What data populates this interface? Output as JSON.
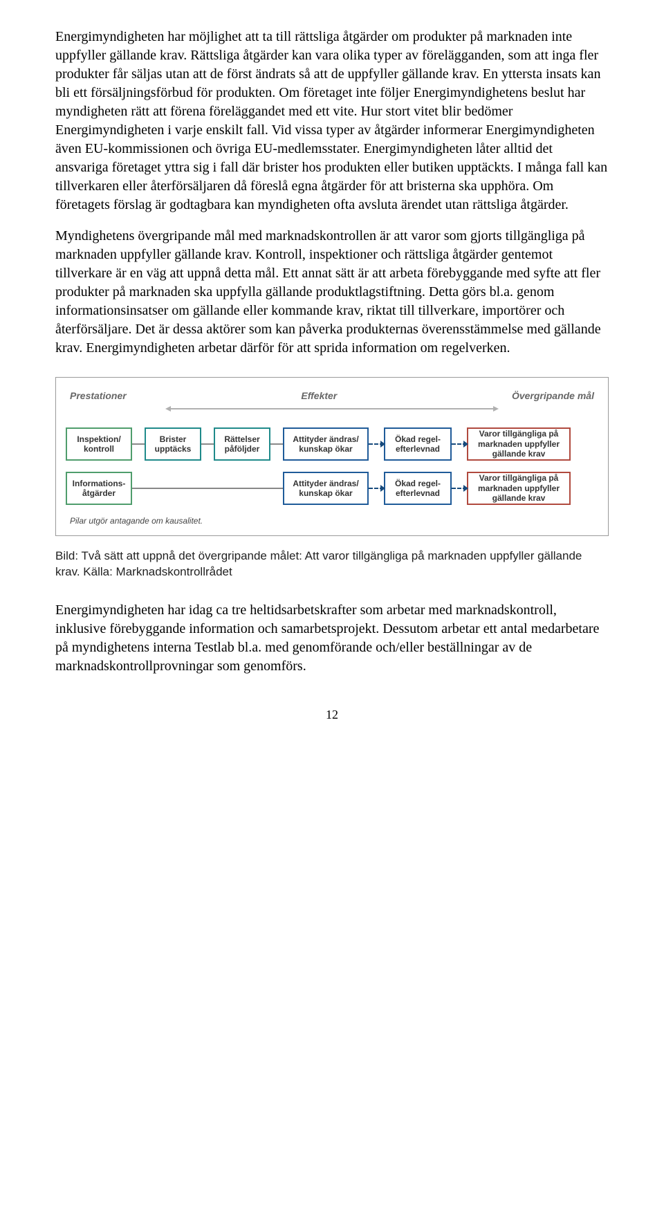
{
  "paragraphs": {
    "p1": "Energimyndigheten har möjlighet att ta till rättsliga åtgärder om produkter på marknaden inte uppfyller gällande krav. Rättsliga åtgärder kan vara olika typer av förelägganden, som att inga fler produkter får säljas utan att de först ändrats så att de uppfyller gällande krav. En yttersta insats kan bli ett försäljningsförbud för produkten. Om företaget inte följer Energimyndighetens beslut har myndigheten rätt att förena föreläggandet med ett vite. Hur stort vitet blir bedömer Energimyndigheten i varje enskilt fall. Vid vissa typer av åtgärder informerar Energimyndigheten även EU-kommissionen och övriga EU-medlemsstater. Energimyndigheten låter alltid det ansvariga företaget yttra sig i fall där brister hos produkten eller butiken upptäckts. I många fall kan tillverkaren eller återförsäljaren då föreslå egna åtgärder för att bristerna ska upphöra. Om företagets förslag är godtagbara kan myndigheten ofta avsluta ärendet utan rättsliga åtgärder.",
    "p2": "Myndighetens övergripande mål med marknadskontrollen är att varor som gjorts tillgängliga på marknaden uppfyller gällande krav. Kontroll, inspektioner och rättsliga åtgärder gentemot tillverkare är en väg att uppnå detta mål. Ett annat sätt är att arbeta förebyggande med syfte att fler produkter på marknaden ska uppfylla gällande produktlagstiftning. Detta görs bl.a. genom informationsinsatser om gällande eller kommande krav, riktat till tillverkare, importörer och återförsäljare. Det är dessa aktörer som kan påverka produkternas överensstämmelse med gällande krav. Energimyndigheten arbetar därför för att sprida information om regelverken.",
    "p3": "Energimyndigheten har idag ca tre heltidsarbetskrafter som arbetar med marknadskontroll, inklusive förebyggande information och samarbetsprojekt. Dessutom arbetar ett antal medarbetare på myndighetens interna Testlab bl.a. med genomförande och/eller beställningar av de marknadskontrollprovningar som genomförs."
  },
  "diagram": {
    "header": {
      "left": "Prestationer",
      "mid": "Effekter",
      "right": "Övergripande mål"
    },
    "colors": {
      "green": "#4f9d6c",
      "teal": "#1f8a8a",
      "blue": "#1f5b99",
      "red": "#b0493e",
      "fn": "#444"
    },
    "row1": {
      "b1": "Inspektion/\nkontroll",
      "b2": "Brister\nupptäcks",
      "b3": "Rättelser\npåföljder",
      "b4": "Attityder ändras/\nkunskap ökar",
      "b5": "Ökad regel-\nefterlevnad",
      "b6": "Varor tillgängliga på\nmarknaden uppfyller\ngällande krav"
    },
    "row2": {
      "b1": "Informations-\nåtgärder",
      "b4": "Attityder ändras/\nkunskap ökar",
      "b5": "Ökad regel-\nefterlevnad",
      "b6": "Varor tillgängliga på\nmarknaden uppfyller\ngällande krav"
    },
    "footnote": "Pilar utgör antagande om kausalitet."
  },
  "caption": "Bild: Två sätt att uppnå det övergripande målet: Att varor tillgängliga på marknaden uppfyller gällande krav. Källa: Marknadskontrollrådet",
  "pagenum": "12"
}
